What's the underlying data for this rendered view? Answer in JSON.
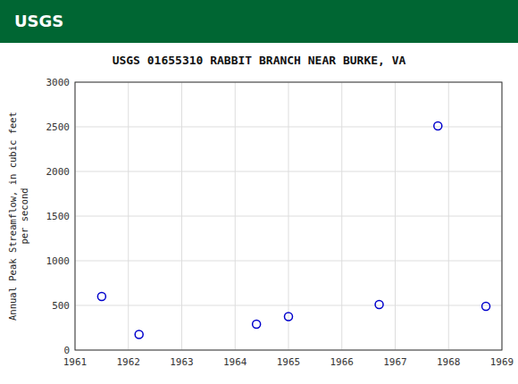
{
  "chart_data": {
    "type": "scatter",
    "title": "USGS 01655310 RABBIT BRANCH NEAR BURKE, VA",
    "annotations": [
      "USGS"
    ],
    "y_label": [
      "Annual Peak Streamflow, in cubic feet",
      "per second"
    ],
    "x": [
      1961.5,
      1962.2,
      1964.4,
      1965.0,
      1966.7,
      1967.8,
      1968.7
    ],
    "values": [
      600,
      175,
      290,
      375,
      510,
      2510,
      490
    ],
    "color": "#0000cc",
    "marker": "circle",
    "xlim": [
      1961,
      1969
    ],
    "xticks": [
      1961,
      1962,
      1963,
      1964,
      1965,
      1966,
      1967,
      1968,
      1969
    ],
    "ylim": [
      0,
      3000
    ],
    "yticks": [
      0,
      500,
      1000,
      1500,
      2000,
      2500,
      3000
    ],
    "grid": true
  }
}
